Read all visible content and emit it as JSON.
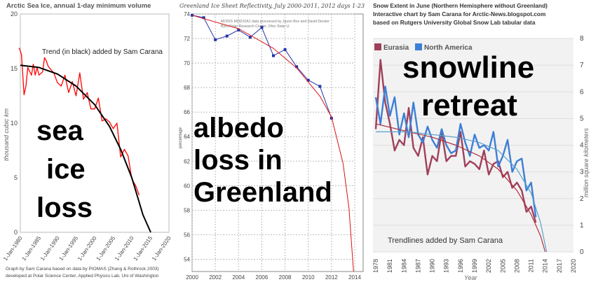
{
  "chart_data": [
    {
      "type": "line",
      "title": "Arctic Sea Ice, annual 1-day minimum volume",
      "ylabel": "thousand cubic km",
      "ylim": [
        0,
        20
      ],
      "yticks": [
        "0",
        "5",
        "10",
        "15",
        "20"
      ],
      "xlim": [
        1980,
        2020
      ],
      "xticks": [
        "1-Jan-1980",
        "1-Jan-1985",
        "1-Jan-1990",
        "1-Jan-1995",
        "1-Jan-2000",
        "1-Jan-2005",
        "1-Jan-2010",
        "1-Jan-2015",
        "1-Jan-2020"
      ],
      "annotation": "Trend (in black) added by Sam Carana",
      "overlay_lines": [
        "sea",
        "ice",
        "loss"
      ],
      "footer": [
        "Graph by Sam Carana based on data by PIOMAS (Zhang & Rothrock 2003)",
        "developed at Polar Science Center, Applied Physics Lab, Uni of Washington"
      ],
      "series": [
        {
          "x": [
            1979.7,
            1980.3,
            1981,
            1981.5,
            1982,
            1983,
            1983.5,
            1984,
            1984.5,
            1985,
            1986,
            1986.5,
            1987,
            1987.5,
            1988,
            1989,
            1990,
            1991,
            1992,
            1993,
            1994,
            1995,
            1996,
            1997,
            1998,
            1999,
            2000,
            2001,
            2002,
            2003,
            2004,
            2005,
            2006,
            2007,
            2008,
            2009,
            2010,
            2011,
            2012
          ],
          "values": [
            16.9,
            16.3,
            12.6,
            13.4,
            15.1,
            14.4,
            15.4,
            14.4,
            15.1,
            14.4,
            14.7,
            16.0,
            15.7,
            15.2,
            15.0,
            14.6,
            13.7,
            13.4,
            14.4,
            12.8,
            13.8,
            12.5,
            14.6,
            12.2,
            12.8,
            11.3,
            11.3,
            12.3,
            10.2,
            10.4,
            10.1,
            9.5,
            10.0,
            6.9,
            7.6,
            7.0,
            4.9,
            4.3,
            3.4
          ],
          "color": "#ff0000"
        },
        {
          "x": [
            1980,
            1985,
            1990,
            1995,
            2000,
            2004,
            2007,
            2010,
            2013,
            2015.1
          ],
          "values": [
            15.3,
            15.1,
            14.5,
            13.4,
            11.7,
            9.7,
            7.6,
            5.0,
            1.6,
            0
          ],
          "color": "#000000"
        }
      ]
    },
    {
      "type": "line",
      "title": "Greenland Ice Sheet Reflectivity, July 2000-2011, 2012 days 1-23",
      "ylabel": "percentage",
      "ylim": [
        53,
        74
      ],
      "yticks": [
        "54",
        "56",
        "58",
        "60",
        "62",
        "64",
        "66",
        "68",
        "70",
        "72",
        "74"
      ],
      "xlim": [
        2000,
        2014
      ],
      "xticks": [
        "2000",
        "2002",
        "2004",
        "2006",
        "2008",
        "2010",
        "2012",
        "2014"
      ],
      "notes": [
        "MODIS MOD10A1 data processed by Jason Box and David Decker",
        "Byrd Polar Research Center, Ohio State U."
      ],
      "overlay_lines": [
        "albedo",
        "loss in",
        "Greenland"
      ],
      "series": [
        {
          "x": [
            2000,
            2001,
            2002,
            2003,
            2004,
            2005,
            2006,
            2007,
            2008,
            2009,
            2010,
            2011,
            2012
          ],
          "values": [
            73.9,
            73.7,
            71.9,
            72.2,
            72.7,
            72.1,
            72.9,
            70.6,
            71.1,
            69.7,
            68.6,
            68.1,
            65.5
          ],
          "color": "#2233aa"
        },
        {
          "x": [
            2000,
            2004,
            2007,
            2009,
            2011,
            2012,
            2013,
            2013.5,
            2013.9
          ],
          "values": [
            73.9,
            72.8,
            71.2,
            69.6,
            67.3,
            65.6,
            61.8,
            58.2,
            53.0
          ],
          "color": "#dd1111"
        }
      ]
    },
    {
      "type": "line",
      "title": "Snow Extent in June (Northern Hemisphere without Greenland)",
      "subtitle": [
        "Interactive chart by Sam Carana for Arctic-News.blogspot.com",
        "based on Rutgers University Global Snow Lab tabular data"
      ],
      "ylabel": "million square kilometers",
      "ylim": [
        0,
        8
      ],
      "yticks": [
        "0",
        "1",
        "2",
        "3",
        "4",
        "5",
        "6",
        "7",
        "8"
      ],
      "xlim": [
        1977.4,
        2020
      ],
      "xticks": [
        "1978",
        "1981",
        "1984",
        "1987",
        "1990",
        "1993",
        "1996",
        "1999",
        "2002",
        "2005",
        "2008",
        "2011",
        "2014",
        "2017",
        "2020"
      ],
      "xlabel": "Year",
      "legend": "top-left",
      "annotation": "Trendlines added by Sam Carana",
      "overlay_lines": [
        "snowline",
        "retreat"
      ],
      "series": [
        {
          "name": "Eurasia",
          "x": [
            1978,
            1979,
            1980,
            1981,
            1982,
            1983,
            1984,
            1985,
            1986,
            1987,
            1988,
            1989,
            1990,
            1991,
            1992,
            1993,
            1994,
            1995,
            1996,
            1997,
            1998,
            1999,
            2000,
            2001,
            2002,
            2003,
            2004,
            2005,
            2006,
            2007,
            2008,
            2009,
            2010,
            2011,
            2012
          ],
          "values": [
            4.6,
            7.2,
            5.6,
            4.8,
            3.8,
            4.2,
            4.0,
            5.4,
            3.9,
            3.6,
            4.3,
            2.9,
            3.6,
            3.4,
            4.5,
            3.4,
            3.6,
            3.6,
            4.5,
            3.2,
            3.4,
            3.3,
            3.1,
            3.8,
            2.9,
            3.3,
            3.4,
            2.8,
            3.0,
            2.4,
            2.6,
            2.3,
            1.5,
            1.7,
            1.1
          ],
          "color": "#a0405a"
        },
        {
          "name": "North America",
          "x": [
            1978,
            1979,
            1980,
            1981,
            1982,
            1983,
            1984,
            1985,
            1986,
            1987,
            1988,
            1989,
            1990,
            1991,
            1992,
            1993,
            1994,
            1995,
            1996,
            1997,
            1998,
            1999,
            2000,
            2001,
            2002,
            2003,
            2004,
            2005,
            2006,
            2007,
            2008,
            2009,
            2010,
            2011,
            2012
          ],
          "values": [
            5.8,
            4.8,
            6.2,
            5.1,
            5.8,
            4.4,
            5.2,
            4.3,
            5.6,
            4.4,
            4.1,
            4.7,
            4.2,
            3.9,
            4.6,
            4.0,
            3.7,
            3.8,
            4.8,
            4.1,
            3.6,
            4.4,
            3.9,
            4.0,
            3.8,
            4.5,
            3.2,
            3.6,
            4.2,
            3.0,
            3.4,
            3.5,
            2.3,
            2.6,
            1.3
          ],
          "color": "#3d7fd6"
        },
        {
          "x": [
            1978,
            1985,
            1990,
            1995,
            2000,
            2004,
            2008,
            2011,
            2013,
            2014
          ],
          "values": [
            4.8,
            4.5,
            4.3,
            4.0,
            3.6,
            3.1,
            2.3,
            1.4,
            0.6,
            0
          ],
          "color": "#b03040"
        },
        {
          "x": [
            1978,
            1985,
            1990,
            1995,
            2000,
            2004,
            2008,
            2011,
            2013,
            2014.3
          ],
          "values": [
            4.5,
            4.5,
            4.4,
            4.3,
            4.1,
            3.8,
            3.1,
            2.2,
            1.1,
            0
          ],
          "color": "#5aa0cc"
        }
      ]
    }
  ]
}
